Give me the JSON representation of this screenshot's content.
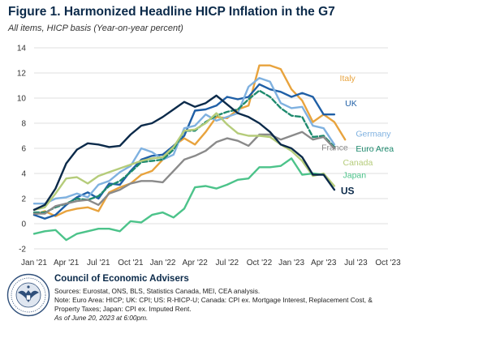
{
  "header": {
    "title": "Figure 1. Harmonized Headline HICP Inflation in the G7",
    "subtitle": "All items, HICP basis (Year-on-year percent)"
  },
  "footer": {
    "org": "Council of Economic Advisers",
    "sources": "Sources: Eurostat, ONS, BLS, Statistics Canada, MEI, CEA analysis.",
    "note1": "Note: Euro Area: HICP; UK: CPI; US: R-HICP-U; Canada: CPI ex. Mortgage Interest, Replacement Cost, &",
    "note2": "Property Taxes; Japan: CPI ex. Imputed Rent.",
    "asof": "As of June 20, 2023 at 6:00pm."
  },
  "chart_data": {
    "type": "line",
    "title": "Figure 1. Harmonized Headline HICP Inflation in the G7",
    "subtitle": "All items, HICP basis (Year-on-year percent)",
    "xlabel": "",
    "ylabel": "",
    "ylim": [
      -2,
      14
    ],
    "yticks": [
      "14",
      "12",
      "10",
      "8",
      "6",
      "4",
      "2",
      "0",
      "-2"
    ],
    "ytick_values": [
      14,
      12,
      10,
      8,
      6,
      4,
      2,
      0,
      -2
    ],
    "xticks": [
      "Jan '21",
      "Apr '21",
      "Jul '21",
      "Oct '21",
      "Jan '22",
      "Apr '22",
      "Jul '22",
      "Oct '22",
      "Jan '23",
      "Apr '23",
      "Jul '23",
      "Oct '23"
    ],
    "xtick_months": [
      0,
      3,
      6,
      9,
      12,
      15,
      18,
      21,
      24,
      27,
      30,
      33
    ],
    "x_range_months": [
      0,
      33
    ],
    "grid": true,
    "legend": "inline labels at line ends",
    "series": [
      {
        "name": "Italy",
        "color": "#e8a33d",
        "dash": false,
        "label_month": 28.5,
        "label_value": 11.6,
        "values": [
          0.7,
          1.0,
          0.6,
          1.0,
          1.2,
          1.3,
          1.0,
          2.5,
          2.9,
          3.2,
          3.9,
          4.2,
          5.1,
          6.2,
          6.8,
          6.3,
          7.3,
          8.5,
          8.4,
          9.1,
          9.4,
          12.6,
          12.6,
          12.3,
          10.7,
          9.8,
          8.1,
          8.7,
          8.1,
          6.7
        ]
      },
      {
        "name": "UK",
        "color": "#1f5fa6",
        "dash": false,
        "label_month": 29.0,
        "label_value": 9.6,
        "values": [
          0.7,
          0.4,
          0.7,
          1.5,
          2.1,
          2.5,
          2.0,
          3.2,
          3.1,
          4.2,
          5.1,
          5.4,
          5.5,
          6.2,
          7.0,
          9.0,
          9.1,
          9.4,
          10.1,
          9.9,
          10.1,
          11.1,
          10.7,
          10.5,
          10.1,
          10.4,
          10.1,
          8.7,
          8.7
        ]
      },
      {
        "name": "Germany",
        "color": "#7fb1e0",
        "dash": false,
        "label_month": 30.0,
        "label_value": 7.2,
        "values": [
          1.6,
          1.6,
          2.0,
          2.1,
          2.4,
          2.1,
          3.1,
          3.4,
          4.1,
          4.6,
          6.0,
          5.7,
          5.1,
          5.5,
          7.6,
          7.8,
          8.7,
          8.2,
          8.5,
          8.8,
          10.9,
          11.6,
          11.3,
          9.6,
          9.2,
          9.3,
          7.8,
          7.6,
          6.3
        ]
      },
      {
        "name": "Euro Area",
        "color": "#1e8a6e",
        "dash": true,
        "label_month": 30.0,
        "label_value": 6.0,
        "values": [
          0.9,
          0.9,
          1.3,
          1.6,
          2.0,
          1.9,
          2.2,
          3.0,
          3.4,
          4.1,
          4.9,
          5.0,
          5.1,
          5.9,
          7.4,
          7.4,
          8.1,
          8.6,
          8.9,
          9.1,
          9.9,
          10.6,
          10.1,
          9.2,
          8.6,
          8.5,
          6.9,
          7.0,
          6.1
        ]
      },
      {
        "name": "France",
        "color": "#8a8a8a",
        "dash": false,
        "label_month": 26.8,
        "label_value": 6.1,
        "values": [
          0.8,
          0.8,
          1.4,
          1.6,
          1.8,
          1.9,
          1.5,
          2.4,
          2.7,
          3.2,
          3.4,
          3.4,
          3.3,
          4.2,
          5.1,
          5.4,
          5.8,
          6.5,
          6.8,
          6.6,
          6.2,
          7.1,
          7.1,
          6.7,
          7.0,
          7.3,
          6.7,
          6.9,
          6.0
        ]
      },
      {
        "name": "Canada",
        "color": "#b5cc7a",
        "dash": false,
        "label_month": 28.8,
        "label_value": 4.9,
        "values": [
          1.1,
          1.3,
          2.4,
          3.6,
          3.7,
          3.2,
          3.8,
          4.1,
          4.4,
          4.7,
          5.0,
          5.2,
          5.3,
          6.1,
          7.4,
          7.5,
          8.0,
          8.8,
          7.9,
          7.2,
          7.0,
          7.0,
          6.9,
          6.3,
          5.8,
          5.0,
          3.8,
          4.0,
          3.0
        ]
      },
      {
        "name": "Japan",
        "color": "#4cc38a",
        "dash": false,
        "label_month": 28.8,
        "label_value": 3.9,
        "values": [
          -0.8,
          -0.6,
          -0.5,
          -1.3,
          -0.8,
          -0.6,
          -0.4,
          -0.4,
          -0.6,
          0.2,
          0.1,
          0.7,
          0.9,
          0.5,
          1.2,
          2.9,
          3.0,
          2.8,
          3.1,
          3.5,
          3.6,
          4.5,
          4.5,
          4.6,
          5.2,
          3.9,
          4.0,
          3.9
        ]
      },
      {
        "name": "US",
        "color": "#0b2a4a",
        "dash": false,
        "label_month": 28.6,
        "label_value": 2.6,
        "values": [
          1.1,
          1.5,
          2.8,
          4.8,
          5.9,
          6.4,
          6.3,
          6.1,
          6.2,
          7.1,
          7.8,
          8.0,
          8.5,
          9.1,
          9.7,
          9.3,
          9.6,
          10.2,
          9.5,
          8.8,
          8.5,
          8.0,
          7.3,
          6.3,
          6.0,
          5.3,
          3.9,
          3.9,
          2.7
        ]
      }
    ]
  }
}
